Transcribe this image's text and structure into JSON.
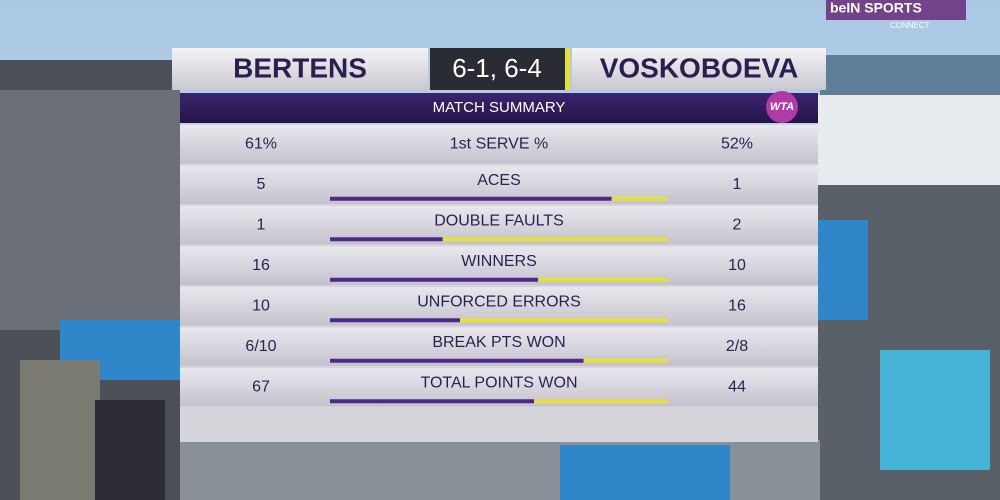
{
  "header": {
    "player_left": "BERTENS",
    "score": "6-1, 6-4",
    "player_right": "VOSKOBOEVA"
  },
  "title": "MATCH SUMMARY",
  "logo": "WTA",
  "broadcaster": {
    "name": "beIN SPORTS",
    "sub": "CONNECT"
  },
  "bar_colors": {
    "left": "#4b2a8a",
    "right": "#e6e03a"
  },
  "stats": [
    {
      "label": "1st SERVE %",
      "left": {
        "value": 61,
        "label": "61%"
      },
      "right": {
        "value": 52,
        "label": "52%"
      },
      "bar": false
    },
    {
      "label": "ACES",
      "left": 5,
      "right": 1,
      "bar": true
    },
    {
      "label": "DOUBLE FAULTS",
      "left": 1,
      "right": 2,
      "bar": true
    },
    {
      "label": "WINNERS",
      "left": 16,
      "right": 10,
      "bar": true
    },
    {
      "label": "UNFORCED ERRORS",
      "left": 10,
      "right": 16,
      "bar": true
    },
    {
      "label": "BREAK PTS WON",
      "left": {
        "value": 6,
        "label": "6/10"
      },
      "right": {
        "value": 2,
        "label": "2/8"
      },
      "bar": true
    },
    {
      "label": "TOTAL POINTS WON",
      "left": 67,
      "right": 44,
      "bar": true
    }
  ]
}
